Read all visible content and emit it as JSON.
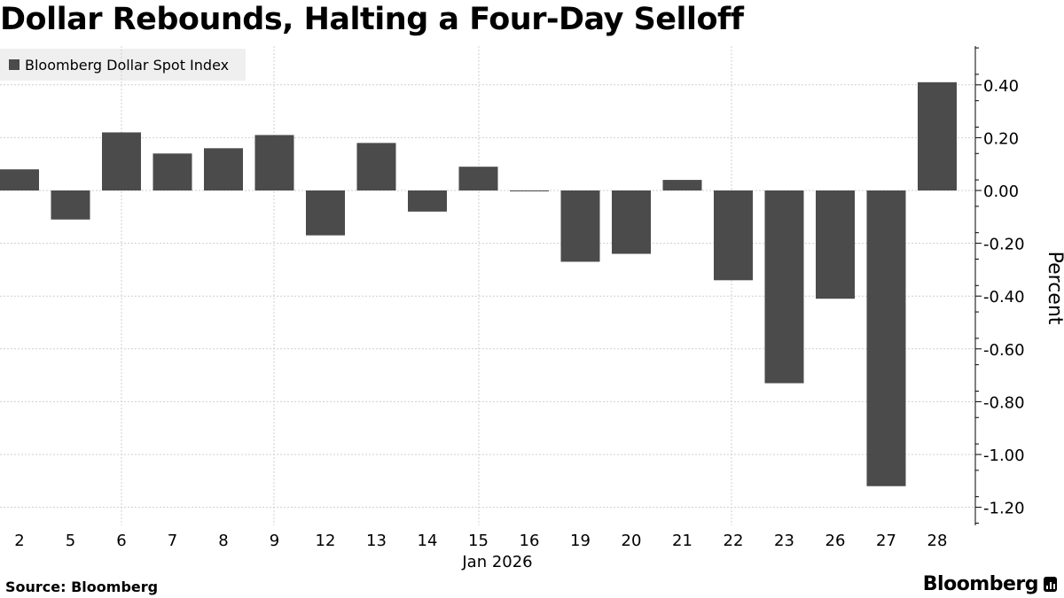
{
  "title": "Dollar Rebounds, Halting a Four-Day Selloff",
  "source": "Source: Bloomberg",
  "brand": "Bloomberg",
  "chart_data": {
    "type": "bar",
    "categories": [
      "2",
      "5",
      "6",
      "7",
      "8",
      "9",
      "12",
      "13",
      "14",
      "15",
      "16",
      "19",
      "20",
      "21",
      "22",
      "23",
      "26",
      "27",
      "28"
    ],
    "x_group_label": "Jan 2026",
    "series": [
      {
        "name": "Bloomberg Dollar Spot Index",
        "color": "#4b4b4b",
        "values": [
          0.08,
          -0.11,
          0.22,
          0.14,
          0.16,
          0.21,
          -0.17,
          0.18,
          -0.08,
          0.09,
          -0.003,
          -0.27,
          -0.24,
          0.04,
          -0.34,
          -0.73,
          -0.41,
          -1.12,
          0.41
        ]
      }
    ],
    "ylabel": "Percent",
    "yticks": [
      "0.40",
      "0.20",
      "0.00",
      "-0.20",
      "-0.40",
      "-0.60",
      "-0.80",
      "-1.00",
      "-1.20"
    ],
    "ylim": [
      -1.27,
      0.55
    ],
    "y_axis_position": "right",
    "grid": true,
    "legend_position": "top-left"
  }
}
